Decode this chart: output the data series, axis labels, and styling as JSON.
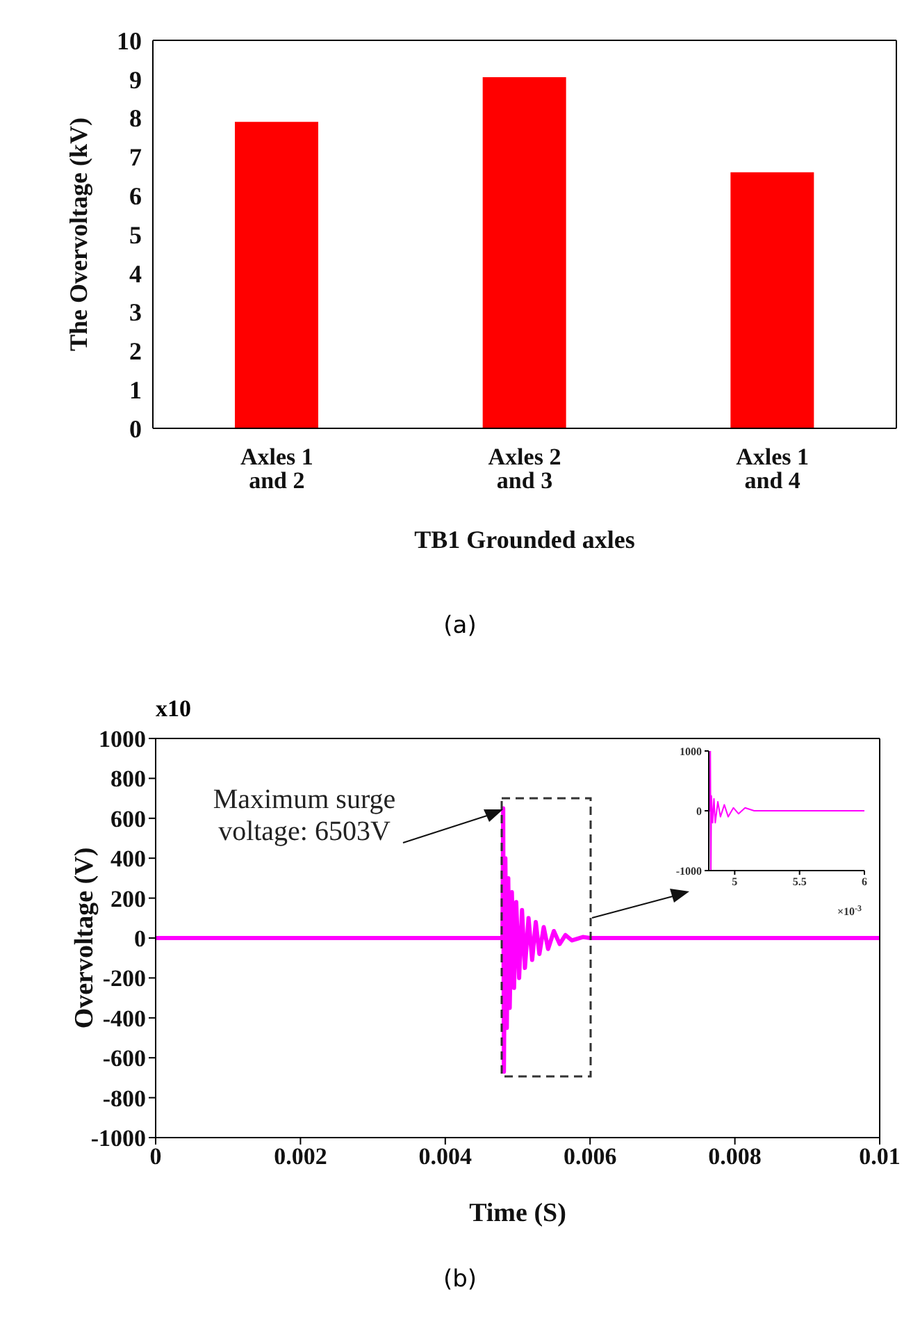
{
  "chart_data": [
    {
      "type": "bar",
      "categories": [
        "Axles 1 and 2",
        "Axles 2 and 3",
        "Axles 1 and 4"
      ],
      "values": [
        7.9,
        9.05,
        6.6
      ],
      "color": "#ff0000",
      "xlabel": "TB1 Grounded axles",
      "ylabel": "The Overvoltage (kV)",
      "ylim": [
        0,
        10
      ],
      "yticks": [
        0,
        1,
        2,
        3,
        4,
        5,
        6,
        7,
        8,
        9,
        10
      ],
      "annotations": [
        "(a)"
      ]
    },
    {
      "type": "line",
      "x": [
        0,
        0.0047,
        0.00479,
        0.0048,
        0.00481,
        0.00483,
        0.00485,
        0.00487,
        0.00489,
        0.00492,
        0.00495,
        0.00498,
        0.00502,
        0.00506,
        0.0051,
        0.00515,
        0.0052,
        0.00525,
        0.0053,
        0.00536,
        0.00542,
        0.0055,
        0.00558,
        0.00566,
        0.00575,
        0.0059,
        0.006,
        0.01
      ],
      "series": [
        {
          "color": "#ff00ff",
          "values": [
            0,
            0,
            0,
            650,
            -670,
            400,
            -450,
            300,
            -350,
            230,
            -250,
            180,
            -200,
            140,
            -150,
            100,
            -110,
            80,
            -80,
            55,
            -55,
            35,
            -30,
            15,
            -12,
            5,
            0,
            0
          ]
        }
      ],
      "xlim": [
        0,
        0.01
      ],
      "xticks": [
        0,
        0.002,
        0.004,
        0.006,
        0.008,
        0.01
      ],
      "ylim": [
        -1000,
        1000
      ],
      "yticks": [
        -1000,
        -800,
        -600,
        -400,
        -200,
        0,
        200,
        400,
        600,
        800,
        1000
      ],
      "xlabel": "Time (S)",
      "ylabel": "Overvoltage (V)",
      "marker": "none",
      "annotations": [
        "Maximum surge voltage: 6503V",
        "x10",
        "(b)"
      ]
    },
    {
      "type": "line",
      "x": [
        4.8,
        4.81,
        4.812,
        4.816,
        4.82,
        4.83,
        4.84,
        4.85,
        4.87,
        4.89,
        4.92,
        4.95,
        4.99,
        5.03,
        5.08,
        5.15,
        5.22,
        5.3,
        5.4,
        5.5,
        5.7,
        6
      ],
      "series": [
        {
          "color": "#ff00ff",
          "values": [
            0,
            0,
            1000,
            -1000,
            250,
            -200,
            200,
            -200,
            150,
            -100,
            100,
            -100,
            50,
            -50,
            50,
            0,
            0,
            0,
            0,
            0,
            0,
            0
          ]
        }
      ],
      "xlim": [
        4.8,
        6
      ],
      "xticks": [
        5,
        5.5,
        6
      ],
      "ylim": [
        -1000,
        1000
      ],
      "yticks": [
        -1000,
        0,
        1000
      ],
      "xlabel": "×10$^{-3}$",
      "marker": "none"
    }
  ]
}
